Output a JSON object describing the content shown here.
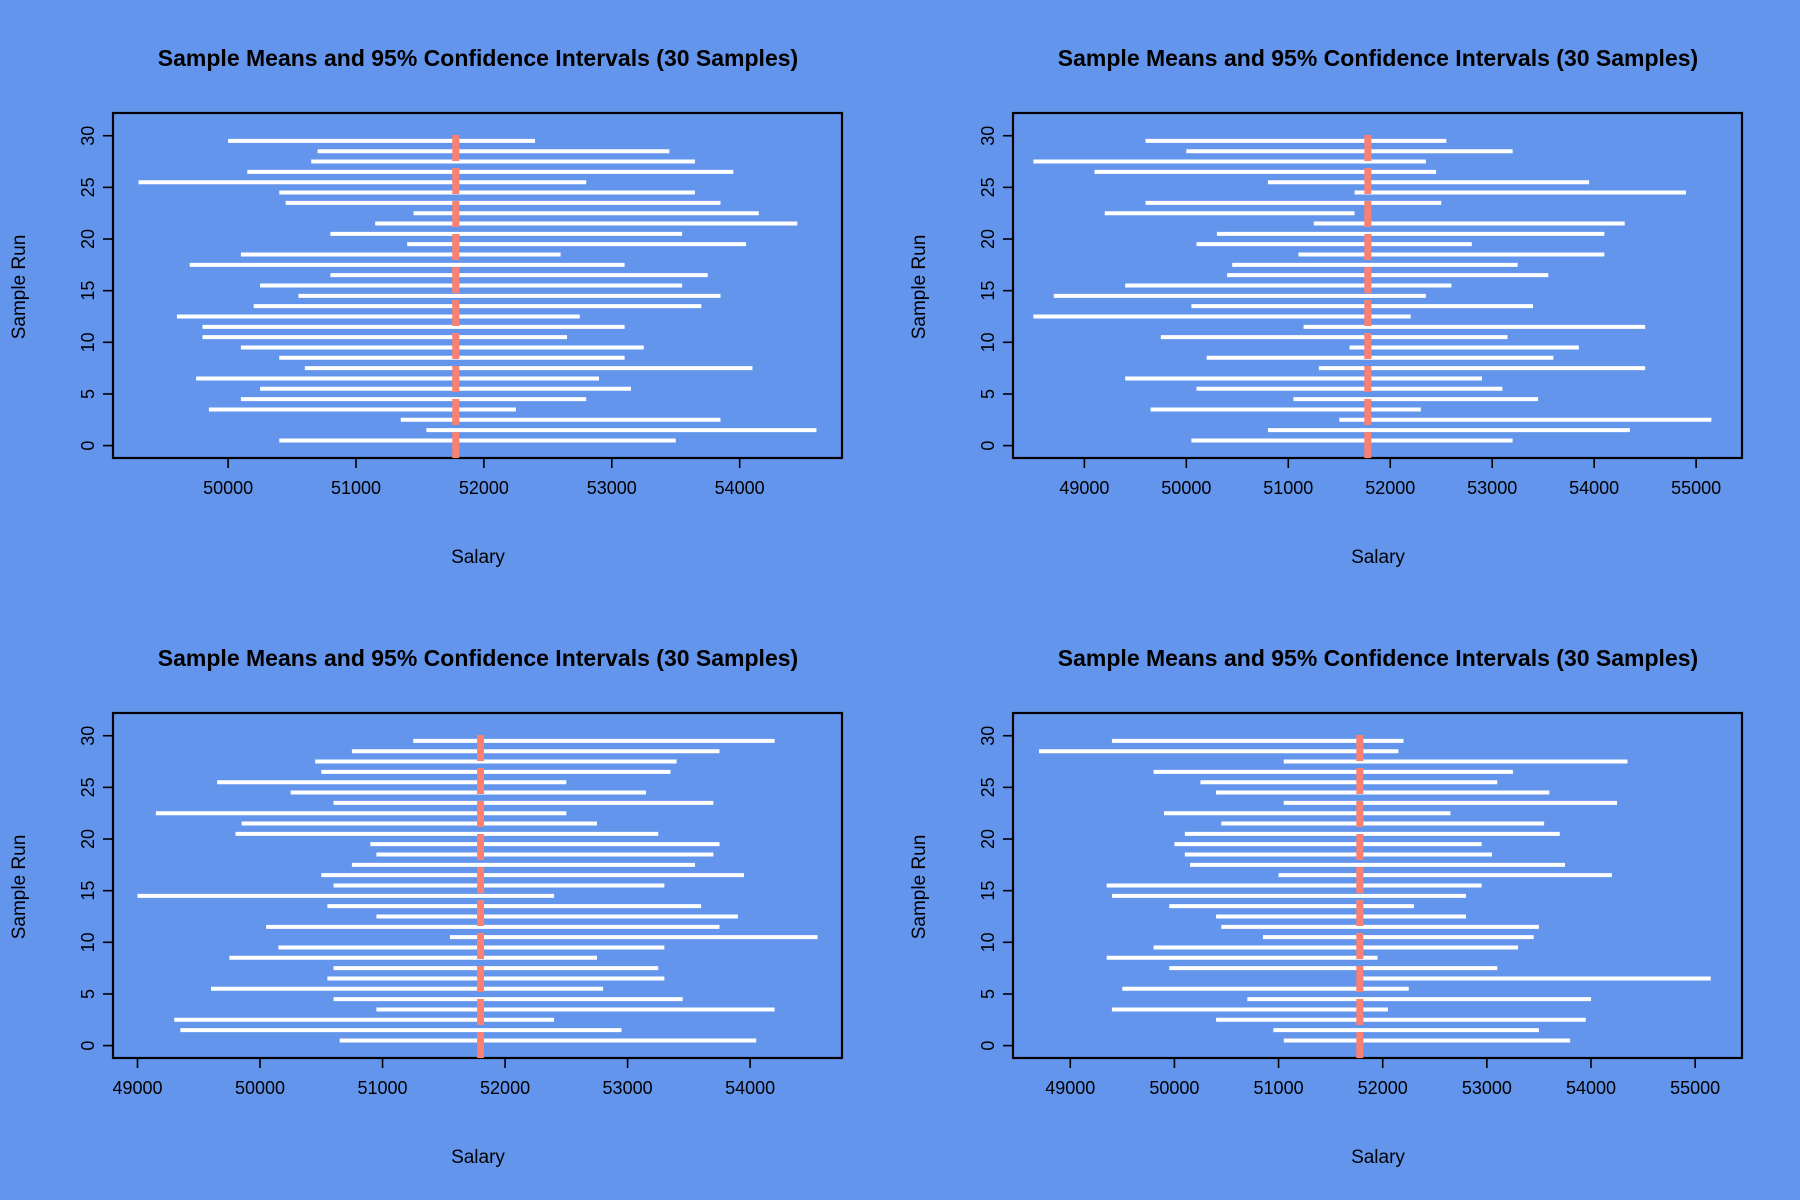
{
  "chart_data": [
    {
      "type": "interval",
      "title": "Sample Means and 95% Confidence Intervals (30 Samples)",
      "xlabel": "Salary",
      "ylabel": "Sample Run",
      "xlim": [
        49100,
        54800
      ],
      "ylim": [
        -1.2,
        32.2
      ],
      "xticks": [
        50000,
        51000,
        52000,
        53000,
        54000
      ],
      "yticks": [
        0,
        5,
        10,
        15,
        20,
        25,
        30
      ],
      "population_mean": 51780,
      "mean_line_color": "#FA8072",
      "interval_color": "#FFFFFF",
      "intervals": [
        {
          "run": 1,
          "low": 50400,
          "high": 53500
        },
        {
          "run": 2,
          "low": 51550,
          "high": 54600
        },
        {
          "run": 3,
          "low": 51350,
          "high": 53850
        },
        {
          "run": 4,
          "low": 49850,
          "high": 52250
        },
        {
          "run": 5,
          "low": 50100,
          "high": 52800
        },
        {
          "run": 6,
          "low": 50250,
          "high": 53150
        },
        {
          "run": 7,
          "low": 49750,
          "high": 52900
        },
        {
          "run": 8,
          "low": 50600,
          "high": 54100
        },
        {
          "run": 9,
          "low": 50400,
          "high": 53100
        },
        {
          "run": 10,
          "low": 50100,
          "high": 53250
        },
        {
          "run": 11,
          "low": 49800,
          "high": 52650
        },
        {
          "run": 12,
          "low": 49800,
          "high": 53100
        },
        {
          "run": 13,
          "low": 49600,
          "high": 52750
        },
        {
          "run": 14,
          "low": 50200,
          "high": 53700
        },
        {
          "run": 15,
          "low": 50550,
          "high": 53850
        },
        {
          "run": 16,
          "low": 50250,
          "high": 53550
        },
        {
          "run": 17,
          "low": 50800,
          "high": 53750
        },
        {
          "run": 18,
          "low": 49700,
          "high": 53100
        },
        {
          "run": 19,
          "low": 50100,
          "high": 52600
        },
        {
          "run": 20,
          "low": 51400,
          "high": 54050
        },
        {
          "run": 21,
          "low": 50800,
          "high": 53550
        },
        {
          "run": 22,
          "low": 51150,
          "high": 54450
        },
        {
          "run": 23,
          "low": 51450,
          "high": 54150
        },
        {
          "run": 24,
          "low": 50450,
          "high": 53850
        },
        {
          "run": 25,
          "low": 50400,
          "high": 53650
        },
        {
          "run": 26,
          "low": 49300,
          "high": 52800
        },
        {
          "run": 27,
          "low": 50150,
          "high": 53950
        },
        {
          "run": 28,
          "low": 50650,
          "high": 53650
        },
        {
          "run": 29,
          "low": 50700,
          "high": 53450
        },
        {
          "run": 30,
          "low": 50000,
          "high": 52400
        }
      ]
    },
    {
      "type": "interval",
      "title": "Sample Means and 95% Confidence Intervals (30 Samples)",
      "xlabel": "Salary",
      "ylabel": "Sample Run",
      "xlim": [
        48300,
        55450
      ],
      "ylim": [
        -1.2,
        32.2
      ],
      "xticks": [
        49000,
        50000,
        51000,
        52000,
        53000,
        54000,
        55000
      ],
      "yticks": [
        0,
        5,
        10,
        15,
        20,
        25,
        30
      ],
      "population_mean": 51780,
      "mean_line_color": "#FA8072",
      "interval_color": "#FFFFFF",
      "intervals": [
        {
          "run": 1,
          "low": 50050,
          "high": 53200
        },
        {
          "run": 2,
          "low": 50800,
          "high": 54350
        },
        {
          "run": 3,
          "low": 51500,
          "high": 55150
        },
        {
          "run": 4,
          "low": 49650,
          "high": 52300
        },
        {
          "run": 5,
          "low": 51050,
          "high": 53450
        },
        {
          "run": 6,
          "low": 50100,
          "high": 53100
        },
        {
          "run": 7,
          "low": 49400,
          "high": 52900
        },
        {
          "run": 8,
          "low": 51300,
          "high": 54500
        },
        {
          "run": 9,
          "low": 50200,
          "high": 53600
        },
        {
          "run": 10,
          "low": 51600,
          "high": 53850
        },
        {
          "run": 11,
          "low": 49750,
          "high": 53150
        },
        {
          "run": 12,
          "low": 51150,
          "high": 54500
        },
        {
          "run": 13,
          "low": 48500,
          "high": 52200
        },
        {
          "run": 14,
          "low": 50050,
          "high": 53400
        },
        {
          "run": 15,
          "low": 48700,
          "high": 52350
        },
        {
          "run": 16,
          "low": 49400,
          "high": 52600
        },
        {
          "run": 17,
          "low": 50400,
          "high": 53550
        },
        {
          "run": 18,
          "low": 50450,
          "high": 53250
        },
        {
          "run": 19,
          "low": 51100,
          "high": 54100
        },
        {
          "run": 20,
          "low": 50100,
          "high": 52800
        },
        {
          "run": 21,
          "low": 50300,
          "high": 54100
        },
        {
          "run": 22,
          "low": 51250,
          "high": 54300
        },
        {
          "run": 23,
          "low": 49200,
          "high": 51650
        },
        {
          "run": 24,
          "low": 49600,
          "high": 52500
        },
        {
          "run": 25,
          "low": 51650,
          "high": 54900
        },
        {
          "run": 26,
          "low": 50800,
          "high": 53950
        },
        {
          "run": 27,
          "low": 49100,
          "high": 52450
        },
        {
          "run": 28,
          "low": 48500,
          "high": 52350
        },
        {
          "run": 29,
          "low": 50000,
          "high": 53200
        },
        {
          "run": 30,
          "low": 49600,
          "high": 52550
        }
      ]
    },
    {
      "type": "interval",
      "title": "Sample Means and 95% Confidence Intervals (30 Samples)",
      "xlabel": "Salary",
      "ylabel": "Sample Run",
      "xlim": [
        48800,
        54750
      ],
      "ylim": [
        -1.2,
        32.2
      ],
      "xticks": [
        49000,
        50000,
        51000,
        52000,
        53000,
        54000
      ],
      "yticks": [
        0,
        5,
        10,
        15,
        20,
        25,
        30
      ],
      "population_mean": 51800,
      "mean_line_color": "#FA8072",
      "interval_color": "#FFFFFF",
      "intervals": [
        {
          "run": 1,
          "low": 50650,
          "high": 54050
        },
        {
          "run": 2,
          "low": 49350,
          "high": 52950
        },
        {
          "run": 3,
          "low": 49300,
          "high": 52400
        },
        {
          "run": 4,
          "low": 50950,
          "high": 54200
        },
        {
          "run": 5,
          "low": 50600,
          "high": 53450
        },
        {
          "run": 6,
          "low": 49600,
          "high": 52800
        },
        {
          "run": 7,
          "low": 50550,
          "high": 53300
        },
        {
          "run": 8,
          "low": 50600,
          "high": 53250
        },
        {
          "run": 9,
          "low": 49750,
          "high": 52750
        },
        {
          "run": 10,
          "low": 50150,
          "high": 53300
        },
        {
          "run": 11,
          "low": 51550,
          "high": 54550
        },
        {
          "run": 12,
          "low": 50050,
          "high": 53750
        },
        {
          "run": 13,
          "low": 50950,
          "high": 53900
        },
        {
          "run": 14,
          "low": 50550,
          "high": 53600
        },
        {
          "run": 15,
          "low": 49000,
          "high": 52400
        },
        {
          "run": 16,
          "low": 50600,
          "high": 53300
        },
        {
          "run": 17,
          "low": 50500,
          "high": 53950
        },
        {
          "run": 18,
          "low": 50750,
          "high": 53550
        },
        {
          "run": 19,
          "low": 50950,
          "high": 53700
        },
        {
          "run": 20,
          "low": 50900,
          "high": 53750
        },
        {
          "run": 21,
          "low": 49800,
          "high": 53250
        },
        {
          "run": 22,
          "low": 49850,
          "high": 52750
        },
        {
          "run": 23,
          "low": 49150,
          "high": 52500
        },
        {
          "run": 24,
          "low": 50600,
          "high": 53700
        },
        {
          "run": 25,
          "low": 50250,
          "high": 53150
        },
        {
          "run": 26,
          "low": 49650,
          "high": 52500
        },
        {
          "run": 27,
          "low": 50500,
          "high": 53350
        },
        {
          "run": 28,
          "low": 50450,
          "high": 53400
        },
        {
          "run": 29,
          "low": 50750,
          "high": 53750
        },
        {
          "run": 30,
          "low": 51250,
          "high": 54200
        }
      ]
    },
    {
      "type": "interval",
      "title": "Sample Means and 95% Confidence Intervals (30 Samples)",
      "xlabel": "Salary",
      "ylabel": "Sample Run",
      "xlim": [
        48450,
        55450
      ],
      "ylim": [
        -1.2,
        32.2
      ],
      "xticks": [
        49000,
        50000,
        51000,
        52000,
        53000,
        54000,
        55000
      ],
      "yticks": [
        0,
        5,
        10,
        15,
        20,
        25,
        30
      ],
      "population_mean": 51780,
      "mean_line_color": "#FA8072",
      "interval_color": "#FFFFFF",
      "intervals": [
        {
          "run": 1,
          "low": 51050,
          "high": 53800
        },
        {
          "run": 2,
          "low": 50950,
          "high": 53500
        },
        {
          "run": 3,
          "low": 50400,
          "high": 53950
        },
        {
          "run": 4,
          "low": 49400,
          "high": 52050
        },
        {
          "run": 5,
          "low": 50700,
          "high": 54000
        },
        {
          "run": 6,
          "low": 49500,
          "high": 52250
        },
        {
          "run": 7,
          "low": 51800,
          "high": 55150
        },
        {
          "run": 8,
          "low": 49950,
          "high": 53100
        },
        {
          "run": 9,
          "low": 49350,
          "high": 51950
        },
        {
          "run": 10,
          "low": 49800,
          "high": 53300
        },
        {
          "run": 11,
          "low": 50850,
          "high": 53450
        },
        {
          "run": 12,
          "low": 50450,
          "high": 53500
        },
        {
          "run": 13,
          "low": 50400,
          "high": 52800
        },
        {
          "run": 14,
          "low": 49950,
          "high": 52300
        },
        {
          "run": 15,
          "low": 49400,
          "high": 52800
        },
        {
          "run": 16,
          "low": 49350,
          "high": 52950
        },
        {
          "run": 17,
          "low": 51000,
          "high": 54200
        },
        {
          "run": 18,
          "low": 50150,
          "high": 53750
        },
        {
          "run": 19,
          "low": 50100,
          "high": 53050
        },
        {
          "run": 20,
          "low": 50000,
          "high": 52950
        },
        {
          "run": 21,
          "low": 50100,
          "high": 53700
        },
        {
          "run": 22,
          "low": 50450,
          "high": 53550
        },
        {
          "run": 23,
          "low": 49900,
          "high": 52650
        },
        {
          "run": 24,
          "low": 51050,
          "high": 54250
        },
        {
          "run": 25,
          "low": 50400,
          "high": 53600
        },
        {
          "run": 26,
          "low": 50250,
          "high": 53100
        },
        {
          "run": 27,
          "low": 49800,
          "high": 53250
        },
        {
          "run": 28,
          "low": 51050,
          "high": 54350
        },
        {
          "run": 29,
          "low": 48700,
          "high": 52150
        },
        {
          "run": 30,
          "low": 49400,
          "high": 52200
        }
      ]
    }
  ]
}
